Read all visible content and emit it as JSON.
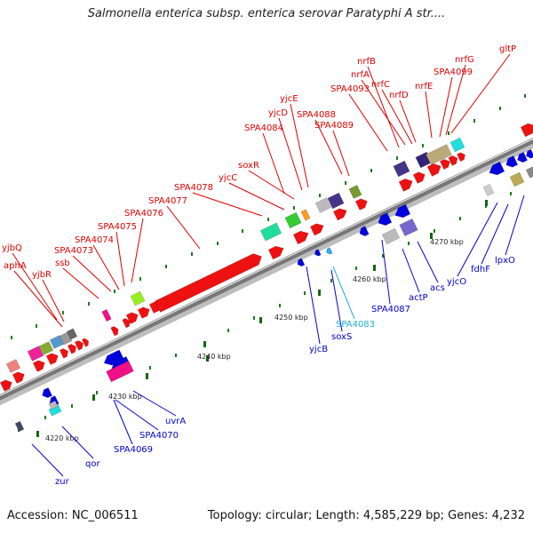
{
  "title": "Salmonella enterica subsp. enterica serovar Paratyphi A str....",
  "footer": {
    "accession": "Accession: NC_006511",
    "summary": "Topology: circular; Length: 4,585,229 bp; Genes: 4,232"
  },
  "colors": {
    "forward_label": "#dd0000",
    "reverse_label": "#0000cc",
    "highlight_label": "#22aadd",
    "axis": "#888888",
    "tick": "#116611"
  },
  "axis_ticks": [
    {
      "label": "4220 kbp"
    },
    {
      "label": "4230 kbp"
    },
    {
      "label": "4240 kbp"
    },
    {
      "label": "4250 kbp"
    },
    {
      "label": "4260 kbp"
    },
    {
      "label": "4270 kbp"
    }
  ],
  "forward_genes": [
    {
      "label": "yjbQ"
    },
    {
      "label": "aphA"
    },
    {
      "label": "yjbR"
    },
    {
      "label": "ssb"
    },
    {
      "label": "SPA4073"
    },
    {
      "label": "SPA4074"
    },
    {
      "label": "SPA4075"
    },
    {
      "label": "SPA4076"
    },
    {
      "label": "SPA4077"
    },
    {
      "label": "SPA4078"
    },
    {
      "label": "yjcC"
    },
    {
      "label": "soxR"
    },
    {
      "label": "SPA4084"
    },
    {
      "label": "yjcD"
    },
    {
      "label": "yjcE"
    },
    {
      "label": "SPA4088"
    },
    {
      "label": "SPA4089"
    },
    {
      "label": "SPA4093"
    },
    {
      "label": "nrfB"
    },
    {
      "label": "nrfA"
    },
    {
      "label": "nrfC"
    },
    {
      "label": "nrfD"
    },
    {
      "label": "nrfE"
    },
    {
      "label": "SPA4099"
    },
    {
      "label": "nrfG"
    },
    {
      "label": "gltP"
    }
  ],
  "reverse_genes": [
    {
      "label": "zur"
    },
    {
      "label": "qor"
    },
    {
      "label": "SPA4069"
    },
    {
      "label": "SPA4070"
    },
    {
      "label": "uvrA"
    },
    {
      "label": "yjcB"
    },
    {
      "label": "soxS"
    },
    {
      "label": "SPA4083"
    },
    {
      "label": "SPA4087"
    },
    {
      "label": "actP"
    },
    {
      "label": "acs"
    },
    {
      "label": "yjcO"
    },
    {
      "label": "fdhF"
    },
    {
      "label": "lpxO"
    }
  ]
}
